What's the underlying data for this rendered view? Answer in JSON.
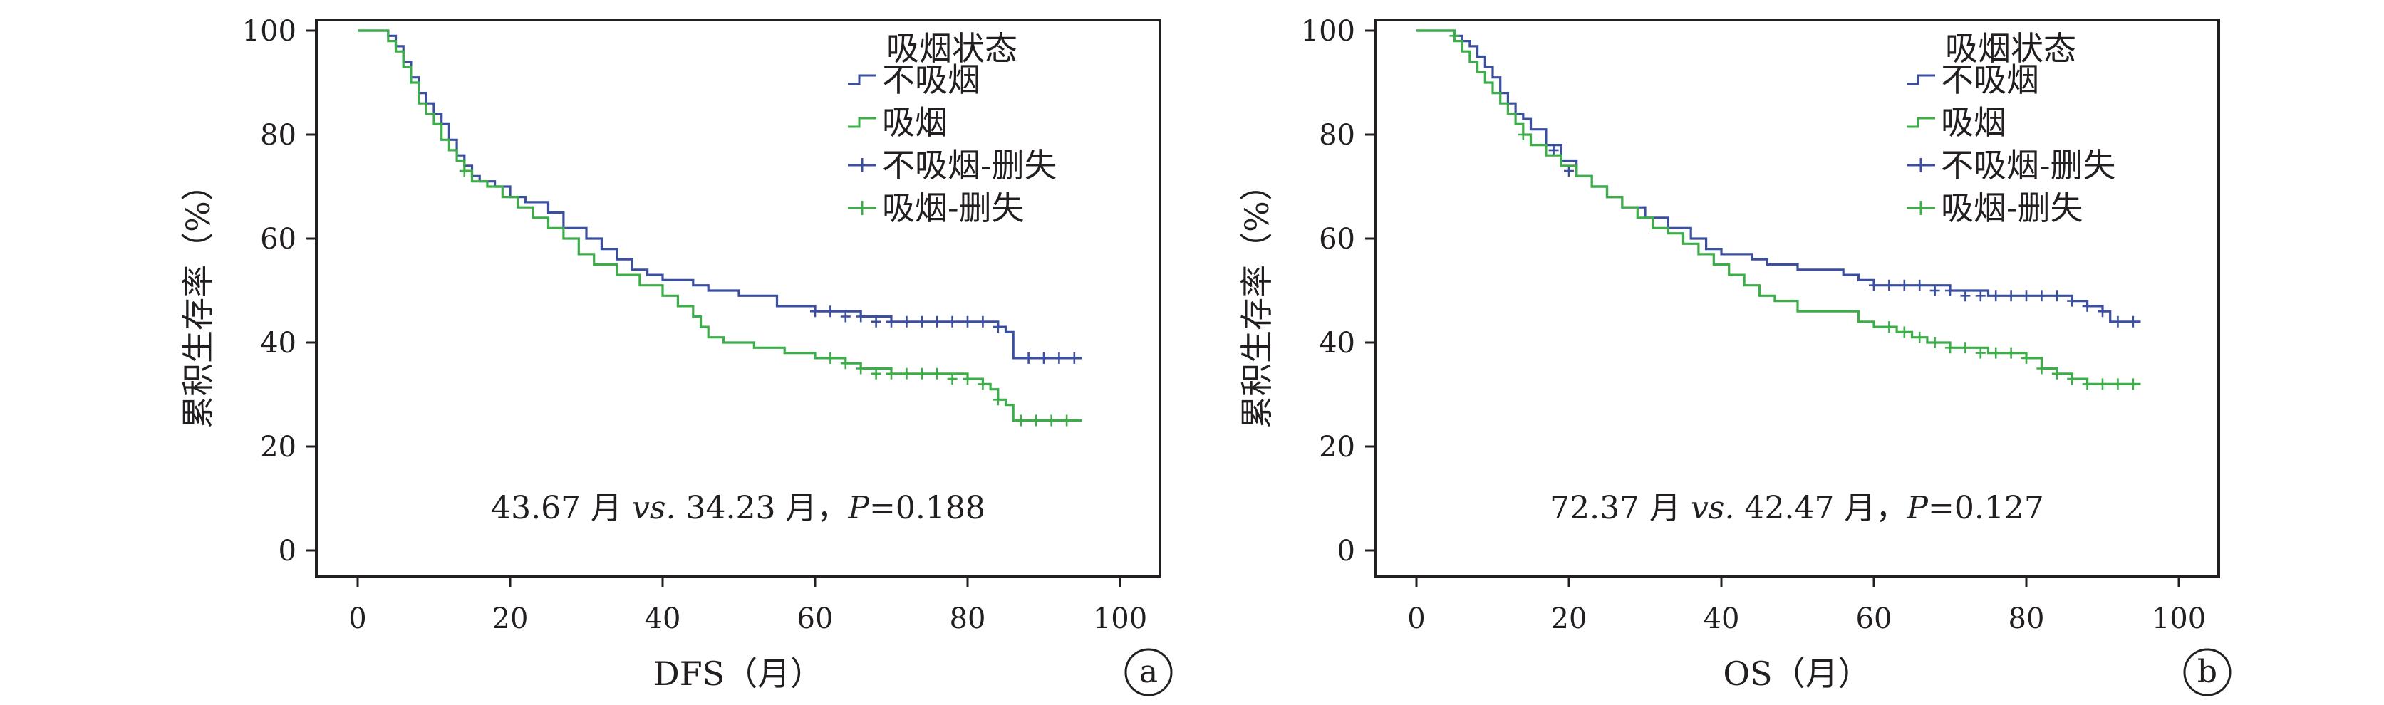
{
  "chart_data": [
    {
      "type": "line",
      "panel_label": "a",
      "xlabel": "DFS（月）",
      "ylabel": "累积生存率（%）",
      "xlim": [
        0,
        100
      ],
      "ylim": [
        0,
        100
      ],
      "x_ticks": [
        "0",
        "20",
        "40",
        "60",
        "80",
        "100"
      ],
      "y_ticks": [
        "0",
        "20",
        "40",
        "60",
        "80",
        "100"
      ],
      "grid": false,
      "legend_title": "吸烟状态",
      "legend_position": "top-right",
      "legend": [
        "不吸烟",
        "吸烟",
        "不吸烟-删失",
        "吸烟-删失"
      ],
      "annotation": {
        "part1": "43.67 月 ",
        "vs": "vs.",
        "part2": " 34.23 月，",
        "p": "P",
        "part3": "=0.188"
      },
      "series": [
        {
          "name": "不吸烟",
          "color": "#3b4fa0",
          "points": [
            [
              0,
              100
            ],
            [
              3,
              100
            ],
            [
              4,
              99
            ],
            [
              5,
              97
            ],
            [
              6,
              94
            ],
            [
              7,
              91
            ],
            [
              8,
              88
            ],
            [
              9,
              86
            ],
            [
              10,
              84
            ],
            [
              11,
              82
            ],
            [
              12,
              79
            ],
            [
              13,
              76
            ],
            [
              14,
              74
            ],
            [
              15,
              72
            ],
            [
              16,
              71
            ],
            [
              18,
              70
            ],
            [
              20,
              68
            ],
            [
              22,
              67
            ],
            [
              25,
              65
            ],
            [
              27,
              62
            ],
            [
              30,
              60
            ],
            [
              32,
              58
            ],
            [
              34,
              56
            ],
            [
              36,
              54
            ],
            [
              38,
              53
            ],
            [
              40,
              52
            ],
            [
              44,
              51
            ],
            [
              46,
              50
            ],
            [
              50,
              49
            ],
            [
              55,
              47
            ],
            [
              60,
              46
            ],
            [
              66,
              45
            ],
            [
              70,
              44
            ],
            [
              75,
              44
            ],
            [
              80,
              44
            ],
            [
              84,
              43
            ],
            [
              85,
              42
            ],
            [
              86,
              37
            ],
            [
              88,
              37
            ],
            [
              95,
              37
            ]
          ],
          "censored": [
            [
              60,
              46
            ],
            [
              62,
              46
            ],
            [
              64,
              45
            ],
            [
              66,
              45
            ],
            [
              68,
              44
            ],
            [
              70,
              44
            ],
            [
              72,
              44
            ],
            [
              74,
              44
            ],
            [
              76,
              44
            ],
            [
              78,
              44
            ],
            [
              80,
              44
            ],
            [
              82,
              44
            ],
            [
              84,
              43
            ],
            [
              88,
              37
            ],
            [
              90,
              37
            ],
            [
              92,
              37
            ],
            [
              94,
              37
            ]
          ]
        },
        {
          "name": "吸烟",
          "color": "#3cae49",
          "points": [
            [
              0,
              100
            ],
            [
              3,
              100
            ],
            [
              4,
              98
            ],
            [
              5,
              96
            ],
            [
              6,
              93
            ],
            [
              7,
              90
            ],
            [
              8,
              86
            ],
            [
              9,
              84
            ],
            [
              10,
              82
            ],
            [
              11,
              79
            ],
            [
              12,
              77
            ],
            [
              13,
              75
            ],
            [
              14,
              73
            ],
            [
              15,
              71
            ],
            [
              17,
              70
            ],
            [
              19,
              68
            ],
            [
              21,
              66
            ],
            [
              23,
              64
            ],
            [
              25,
              62
            ],
            [
              27,
              60
            ],
            [
              29,
              57
            ],
            [
              31,
              55
            ],
            [
              34,
              53
            ],
            [
              37,
              51
            ],
            [
              40,
              49
            ],
            [
              42,
              47
            ],
            [
              44,
              45
            ],
            [
              45,
              43
            ],
            [
              46,
              41
            ],
            [
              48,
              40
            ],
            [
              52,
              39
            ],
            [
              56,
              38
            ],
            [
              60,
              37
            ],
            [
              64,
              36
            ],
            [
              66,
              35
            ],
            [
              70,
              34
            ],
            [
              75,
              34
            ],
            [
              80,
              33
            ],
            [
              82,
              32
            ],
            [
              83,
              31
            ],
            [
              84,
              29
            ],
            [
              85,
              28
            ],
            [
              86,
              25
            ],
            [
              95,
              25
            ]
          ],
          "censored": [
            [
              14,
              73
            ],
            [
              62,
              37
            ],
            [
              64,
              36
            ],
            [
              66,
              35
            ],
            [
              68,
              34
            ],
            [
              70,
              34
            ],
            [
              72,
              34
            ],
            [
              74,
              34
            ],
            [
              76,
              34
            ],
            [
              78,
              33
            ],
            [
              80,
              33
            ],
            [
              82,
              32
            ],
            [
              84,
              29
            ],
            [
              87,
              25
            ],
            [
              89,
              25
            ],
            [
              91,
              25
            ],
            [
              93,
              25
            ]
          ]
        }
      ]
    },
    {
      "type": "line",
      "panel_label": "b",
      "xlabel": "OS（月）",
      "ylabel": "累积生存率（%）",
      "xlim": [
        0,
        100
      ],
      "ylim": [
        0,
        100
      ],
      "x_ticks": [
        "0",
        "20",
        "40",
        "60",
        "80",
        "100"
      ],
      "y_ticks": [
        "0",
        "20",
        "40",
        "60",
        "80",
        "100"
      ],
      "grid": false,
      "legend_title": "吸烟状态",
      "legend_position": "top-right",
      "legend": [
        "不吸烟",
        "吸烟",
        "不吸烟-删失",
        "吸烟-删失"
      ],
      "annotation": {
        "part1": "72.37 月 ",
        "vs": "vs.",
        "part2": " 42.47 月，",
        "p": "P",
        "part3": "=0.127"
      },
      "series": [
        {
          "name": "不吸烟",
          "color": "#3b4fa0",
          "points": [
            [
              0,
              100
            ],
            [
              4,
              100
            ],
            [
              5,
              99
            ],
            [
              6,
              98
            ],
            [
              7,
              97
            ],
            [
              8,
              95
            ],
            [
              9,
              93
            ],
            [
              10,
              91
            ],
            [
              11,
              88
            ],
            [
              12,
              86
            ],
            [
              13,
              84
            ],
            [
              14,
              83
            ],
            [
              15,
              81
            ],
            [
              17,
              78
            ],
            [
              19,
              75
            ],
            [
              21,
              72
            ],
            [
              23,
              70
            ],
            [
              25,
              68
            ],
            [
              27,
              66
            ],
            [
              30,
              64
            ],
            [
              33,
              62
            ],
            [
              36,
              60
            ],
            [
              38,
              58
            ],
            [
              40,
              57
            ],
            [
              44,
              56
            ],
            [
              46,
              55
            ],
            [
              50,
              54
            ],
            [
              55,
              54
            ],
            [
              56,
              53
            ],
            [
              58,
              52
            ],
            [
              60,
              51
            ],
            [
              65,
              51
            ],
            [
              70,
              50
            ],
            [
              75,
              49
            ],
            [
              80,
              49
            ],
            [
              85,
              49
            ],
            [
              86,
              48
            ],
            [
              88,
              47
            ],
            [
              90,
              46
            ],
            [
              91,
              44
            ],
            [
              95,
              44
            ]
          ],
          "censored": [
            [
              18,
              77
            ],
            [
              20,
              73
            ],
            [
              60,
              51
            ],
            [
              62,
              51
            ],
            [
              64,
              51
            ],
            [
              66,
              51
            ],
            [
              68,
              50
            ],
            [
              70,
              50
            ],
            [
              72,
              49
            ],
            [
              74,
              49
            ],
            [
              76,
              49
            ],
            [
              78,
              49
            ],
            [
              80,
              49
            ],
            [
              82,
              49
            ],
            [
              84,
              49
            ],
            [
              86,
              48
            ],
            [
              88,
              47
            ],
            [
              90,
              46
            ],
            [
              92,
              44
            ],
            [
              94,
              44
            ]
          ]
        },
        {
          "name": "吸烟",
          "color": "#3cae49",
          "points": [
            [
              0,
              100
            ],
            [
              4,
              100
            ],
            [
              5,
              98
            ],
            [
              6,
              96
            ],
            [
              7,
              94
            ],
            [
              8,
              92
            ],
            [
              9,
              90
            ],
            [
              10,
              88
            ],
            [
              11,
              86
            ],
            [
              12,
              84
            ],
            [
              13,
              82
            ],
            [
              14,
              80
            ],
            [
              15,
              78
            ],
            [
              17,
              76
            ],
            [
              19,
              74
            ],
            [
              21,
              72
            ],
            [
              23,
              70
            ],
            [
              25,
              68
            ],
            [
              27,
              66
            ],
            [
              29,
              64
            ],
            [
              31,
              62
            ],
            [
              33,
              61
            ],
            [
              35,
              59
            ],
            [
              37,
              57
            ],
            [
              39,
              55
            ],
            [
              41,
              53
            ],
            [
              43,
              51
            ],
            [
              45,
              49
            ],
            [
              47,
              48
            ],
            [
              50,
              46
            ],
            [
              55,
              46
            ],
            [
              58,
              44
            ],
            [
              60,
              43
            ],
            [
              63,
              42
            ],
            [
              65,
              41
            ],
            [
              67,
              40
            ],
            [
              70,
              39
            ],
            [
              75,
              38
            ],
            [
              80,
              37
            ],
            [
              82,
              35
            ],
            [
              84,
              34
            ],
            [
              86,
              33
            ],
            [
              88,
              32
            ],
            [
              95,
              32
            ]
          ],
          "censored": [
            [
              5,
              99
            ],
            [
              14,
              80
            ],
            [
              62,
              43
            ],
            [
              64,
              42
            ],
            [
              66,
              41
            ],
            [
              68,
              40
            ],
            [
              70,
              39
            ],
            [
              72,
              39
            ],
            [
              74,
              38
            ],
            [
              76,
              38
            ],
            [
              78,
              38
            ],
            [
              80,
              37
            ],
            [
              82,
              35
            ],
            [
              84,
              34
            ],
            [
              86,
              33
            ],
            [
              88,
              32
            ],
            [
              90,
              32
            ],
            [
              92,
              32
            ],
            [
              94,
              32
            ]
          ]
        }
      ]
    }
  ]
}
